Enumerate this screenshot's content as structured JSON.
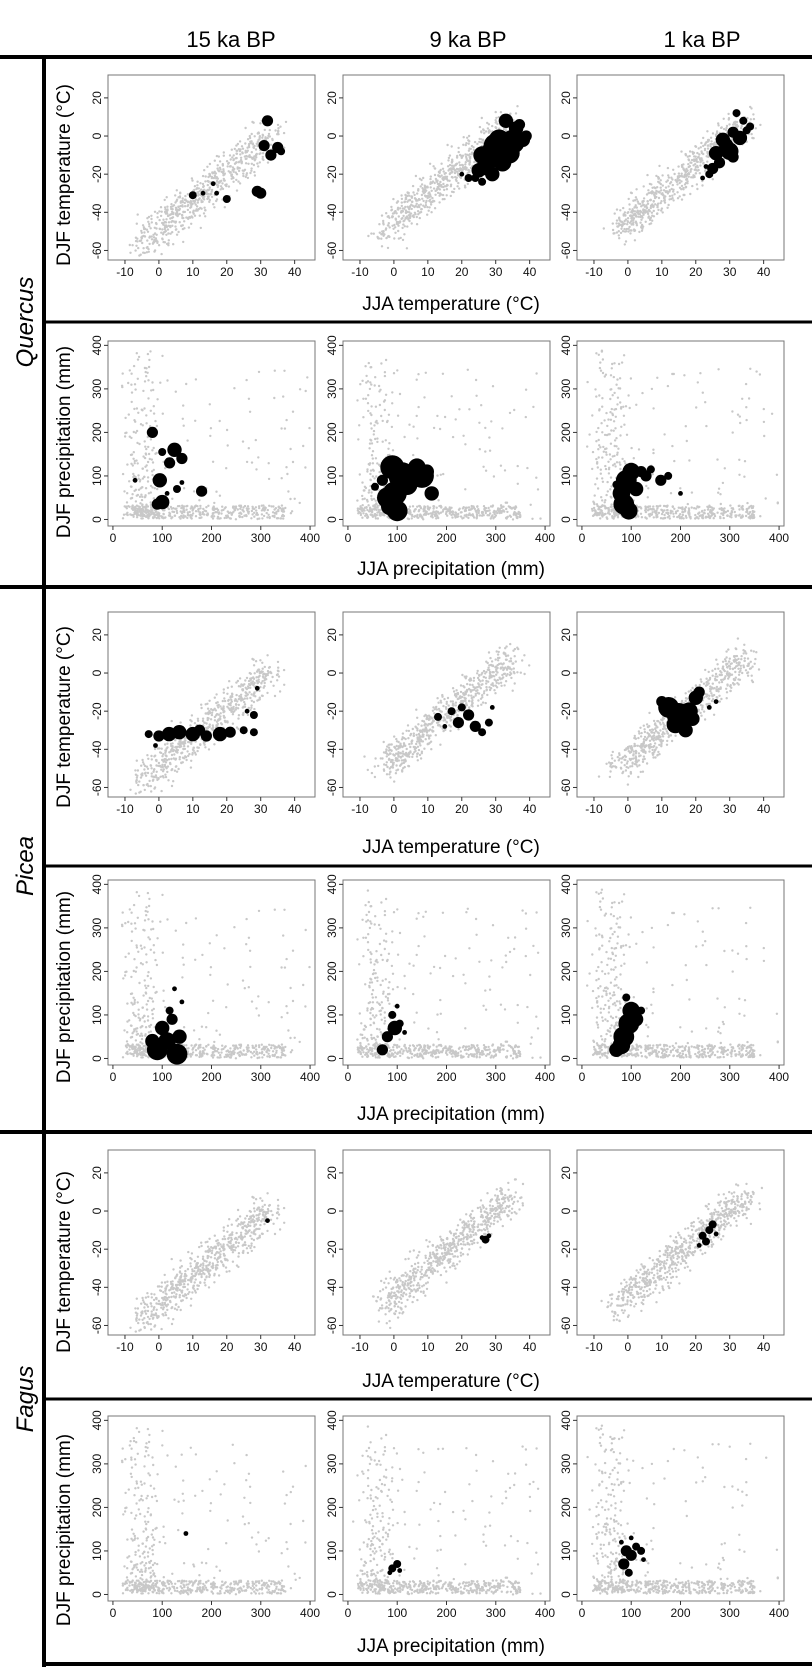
{
  "columns": [
    "15 ka BP",
    "9 ka BP",
    "1 ka BP"
  ],
  "species": [
    "Quercus",
    "Picea",
    "Fagus"
  ],
  "axis_labels": {
    "temp_x": "JJA temperature (°C)",
    "temp_y": "DJF temperature (°C)",
    "prec_x": "JJA precipitation (mm)",
    "prec_y": "DJF precipitation (mm)"
  },
  "colors": {
    "background_cloud": "#c8c8c8",
    "occurrence": "#000000",
    "frame": "#000000"
  },
  "chart_data": [
    {
      "type": "scatter",
      "species": "Quercus",
      "period": "15 ka BP",
      "variables": "temperature",
      "xlim": [
        -15,
        46
      ],
      "ylim": [
        -65,
        32
      ],
      "xticks": [
        -10,
        0,
        10,
        20,
        30,
        40
      ],
      "yticks": [
        20,
        0,
        -20,
        -40,
        -60
      ],
      "points": [
        [
          32,
          8,
          3
        ],
        [
          31,
          -5,
          3
        ],
        [
          35,
          -6,
          3
        ],
        [
          33,
          -10,
          3
        ],
        [
          36,
          -8,
          2
        ],
        [
          29,
          -29,
          3
        ],
        [
          30,
          -30,
          3
        ],
        [
          10,
          -31,
          2
        ],
        [
          13,
          -30,
          1
        ],
        [
          20,
          -33,
          2
        ],
        [
          16,
          -25,
          1
        ],
        [
          17,
          -30,
          1
        ]
      ]
    },
    {
      "type": "scatter",
      "species": "Quercus",
      "period": "9 ka BP",
      "variables": "temperature",
      "xlim": [
        -15,
        46
      ],
      "ylim": [
        -65,
        32
      ],
      "xticks": [
        -10,
        0,
        10,
        20,
        30,
        40
      ],
      "yticks": [
        20,
        0,
        -20,
        -40,
        -60
      ],
      "points": [
        [
          33,
          8,
          4
        ],
        [
          36,
          4,
          4
        ],
        [
          35,
          -3,
          7
        ],
        [
          31,
          -2,
          6
        ],
        [
          30,
          -8,
          8
        ],
        [
          28,
          -12,
          6
        ],
        [
          27,
          -16,
          5
        ],
        [
          32,
          -14,
          5
        ],
        [
          25,
          -18,
          4
        ],
        [
          29,
          -20,
          4
        ],
        [
          24,
          -22,
          2
        ],
        [
          22,
          -22,
          2
        ],
        [
          26,
          -24,
          2
        ],
        [
          38,
          -2,
          4
        ],
        [
          30,
          -5,
          7
        ],
        [
          34,
          -9,
          6
        ],
        [
          26,
          -10,
          5
        ],
        [
          39,
          0,
          3
        ],
        [
          20,
          -20,
          1
        ],
        [
          37,
          6,
          3
        ]
      ]
    },
    {
      "type": "scatter",
      "species": "Quercus",
      "period": "1 ka BP",
      "variables": "temperature",
      "xlim": [
        -15,
        46
      ],
      "ylim": [
        -65,
        32
      ],
      "xticks": [
        -10,
        0,
        10,
        20,
        30,
        40
      ],
      "yticks": [
        20,
        0,
        -20,
        -40,
        -60
      ],
      "points": [
        [
          32,
          12,
          2
        ],
        [
          34,
          8,
          2
        ],
        [
          31,
          2,
          3
        ],
        [
          33,
          -1,
          4
        ],
        [
          29,
          -5,
          4
        ],
        [
          30,
          -8,
          5
        ],
        [
          26,
          -9,
          4
        ],
        [
          27,
          -14,
          3
        ],
        [
          28,
          -2,
          4
        ],
        [
          25,
          -17,
          3
        ],
        [
          24,
          -20,
          2
        ],
        [
          36,
          5,
          2
        ],
        [
          22,
          -22,
          1
        ],
        [
          23,
          -16,
          1
        ],
        [
          35,
          3,
          2
        ],
        [
          31,
          -11,
          3
        ]
      ]
    },
    {
      "type": "scatter",
      "species": "Quercus",
      "period": "15 ka BP",
      "variables": "precipitation",
      "xlim": [
        -10,
        410
      ],
      "ylim": [
        -15,
        410
      ],
      "xticks": [
        0,
        100,
        200,
        300,
        400
      ],
      "yticks": [
        0,
        100,
        200,
        300,
        400
      ],
      "points": [
        [
          80,
          200,
          3
        ],
        [
          100,
          155,
          2
        ],
        [
          125,
          160,
          4
        ],
        [
          140,
          140,
          3
        ],
        [
          115,
          130,
          3
        ],
        [
          95,
          90,
          4
        ],
        [
          180,
          65,
          3
        ],
        [
          130,
          70,
          2
        ],
        [
          100,
          40,
          4
        ],
        [
          90,
          35,
          3
        ],
        [
          45,
          90,
          1
        ],
        [
          140,
          85,
          1
        ],
        [
          110,
          60,
          1
        ]
      ]
    },
    {
      "type": "scatter",
      "species": "Quercus",
      "period": "9 ka BP",
      "variables": "precipitation",
      "xlim": [
        -10,
        410
      ],
      "ylim": [
        -15,
        410
      ],
      "xticks": [
        0,
        100,
        200,
        300,
        400
      ],
      "yticks": [
        0,
        100,
        200,
        300,
        400
      ],
      "points": [
        [
          90,
          120,
          7
        ],
        [
          110,
          100,
          8
        ],
        [
          120,
          80,
          6
        ],
        [
          95,
          60,
          7
        ],
        [
          80,
          50,
          6
        ],
        [
          100,
          20,
          6
        ],
        [
          140,
          120,
          5
        ],
        [
          150,
          100,
          7
        ],
        [
          170,
          60,
          4
        ],
        [
          160,
          110,
          4
        ],
        [
          70,
          90,
          3
        ],
        [
          55,
          75,
          2
        ],
        [
          85,
          30,
          5
        ]
      ]
    },
    {
      "type": "scatter",
      "species": "Quercus",
      "period": "1 ka BP",
      "variables": "precipitation",
      "xlim": [
        -10,
        410
      ],
      "ylim": [
        -15,
        410
      ],
      "xticks": [
        0,
        100,
        200,
        300,
        400
      ],
      "yticks": [
        0,
        100,
        200,
        300,
        400
      ],
      "points": [
        [
          100,
          110,
          5
        ],
        [
          90,
          90,
          6
        ],
        [
          80,
          60,
          5
        ],
        [
          85,
          35,
          6
        ],
        [
          95,
          20,
          5
        ],
        [
          110,
          70,
          4
        ],
        [
          120,
          110,
          3
        ],
        [
          140,
          115,
          2
        ],
        [
          160,
          90,
          3
        ],
        [
          175,
          100,
          2
        ],
        [
          200,
          60,
          1
        ],
        [
          70,
          80,
          2
        ],
        [
          130,
          100,
          3
        ]
      ]
    },
    {
      "type": "scatter",
      "species": "Picea",
      "period": "15 ka BP",
      "variables": "temperature",
      "xlim": [
        -15,
        46
      ],
      "ylim": [
        -65,
        32
      ],
      "xticks": [
        -10,
        0,
        10,
        20,
        30,
        40
      ],
      "yticks": [
        20,
        0,
        -20,
        -40,
        -60
      ],
      "points": [
        [
          -3,
          -32,
          2
        ],
        [
          0,
          -33,
          3
        ],
        [
          3,
          -32,
          4
        ],
        [
          6,
          -31,
          4
        ],
        [
          10,
          -32,
          4
        ],
        [
          14,
          -33,
          3
        ],
        [
          18,
          -32,
          4
        ],
        [
          21,
          -31,
          3
        ],
        [
          25,
          -30,
          2
        ],
        [
          28,
          -31,
          2
        ],
        [
          28,
          -22,
          2
        ],
        [
          29,
          -8,
          1
        ],
        [
          26,
          -20,
          1
        ],
        [
          12,
          -30,
          3
        ],
        [
          -1,
          -38,
          1
        ]
      ]
    },
    {
      "type": "scatter",
      "species": "Picea",
      "period": "9 ka BP",
      "variables": "temperature",
      "xlim": [
        -15,
        46
      ],
      "ylim": [
        -65,
        32
      ],
      "xticks": [
        -10,
        0,
        10,
        20,
        30,
        40
      ],
      "yticks": [
        20,
        0,
        -20,
        -40,
        -60
      ],
      "points": [
        [
          13,
          -23,
          2
        ],
        [
          19,
          -26,
          3
        ],
        [
          22,
          -22,
          3
        ],
        [
          24,
          -28,
          3
        ],
        [
          20,
          -18,
          2
        ],
        [
          26,
          -31,
          2
        ],
        [
          17,
          -20,
          2
        ],
        [
          28,
          -26,
          2
        ],
        [
          29,
          -18,
          1
        ],
        [
          15,
          -28,
          1
        ]
      ]
    },
    {
      "type": "scatter",
      "species": "Picea",
      "period": "1 ka BP",
      "variables": "temperature",
      "xlim": [
        -15,
        46
      ],
      "ylim": [
        -65,
        32
      ],
      "xticks": [
        -10,
        0,
        10,
        20,
        30,
        40
      ],
      "yticks": [
        20,
        0,
        -20,
        -40,
        -60
      ],
      "points": [
        [
          12,
          -18,
          6
        ],
        [
          15,
          -22,
          7
        ],
        [
          18,
          -20,
          5
        ],
        [
          14,
          -27,
          5
        ],
        [
          17,
          -30,
          4
        ],
        [
          20,
          -13,
          4
        ],
        [
          21,
          -10,
          3
        ],
        [
          10,
          -15,
          3
        ],
        [
          19,
          -24,
          4
        ],
        [
          24,
          -18,
          1
        ],
        [
          26,
          -15,
          1
        ]
      ]
    },
    {
      "type": "scatter",
      "species": "Picea",
      "period": "15 ka BP",
      "variables": "precipitation",
      "xlim": [
        -10,
        410
      ],
      "ylim": [
        -15,
        410
      ],
      "xticks": [
        0,
        100,
        200,
        300,
        400
      ],
      "yticks": [
        0,
        100,
        200,
        300,
        400
      ],
      "points": [
        [
          90,
          20,
          6
        ],
        [
          110,
          40,
          5
        ],
        [
          130,
          10,
          6
        ],
        [
          100,
          70,
          4
        ],
        [
          120,
          90,
          3
        ],
        [
          135,
          50,
          4
        ],
        [
          80,
          40,
          4
        ],
        [
          140,
          130,
          1
        ],
        [
          125,
          160,
          1
        ],
        [
          115,
          110,
          2
        ]
      ]
    },
    {
      "type": "scatter",
      "species": "Picea",
      "period": "9 ka BP",
      "variables": "precipitation",
      "xlim": [
        -10,
        410
      ],
      "ylim": [
        -15,
        410
      ],
      "xticks": [
        0,
        100,
        200,
        300,
        400
      ],
      "yticks": [
        0,
        100,
        200,
        300,
        400
      ],
      "points": [
        [
          70,
          20,
          3
        ],
        [
          80,
          50,
          3
        ],
        [
          95,
          70,
          4
        ],
        [
          90,
          100,
          2
        ],
        [
          105,
          80,
          2
        ],
        [
          100,
          120,
          1
        ],
        [
          115,
          60,
          1
        ]
      ]
    },
    {
      "type": "scatter",
      "species": "Picea",
      "period": "1 ka BP",
      "variables": "precipitation",
      "xlim": [
        -10,
        410
      ],
      "ylim": [
        -15,
        410
      ],
      "xticks": [
        0,
        100,
        200,
        300,
        400
      ],
      "yticks": [
        0,
        100,
        200,
        300,
        400
      ],
      "points": [
        [
          70,
          20,
          4
        ],
        [
          85,
          50,
          6
        ],
        [
          95,
          80,
          6
        ],
        [
          100,
          110,
          5
        ],
        [
          110,
          90,
          4
        ],
        [
          90,
          140,
          2
        ],
        [
          120,
          110,
          2
        ],
        [
          80,
          30,
          5
        ]
      ]
    },
    {
      "type": "scatter",
      "species": "Fagus",
      "period": "15 ka BP",
      "variables": "temperature",
      "xlim": [
        -15,
        46
      ],
      "ylim": [
        -65,
        32
      ],
      "xticks": [
        -10,
        0,
        10,
        20,
        30,
        40
      ],
      "yticks": [
        20,
        0,
        -20,
        -40,
        -60
      ],
      "points": [
        [
          32,
          -5,
          1
        ]
      ]
    },
    {
      "type": "scatter",
      "species": "Fagus",
      "period": "9 ka BP",
      "variables": "temperature",
      "xlim": [
        -15,
        46
      ],
      "ylim": [
        -65,
        32
      ],
      "xticks": [
        -10,
        0,
        10,
        20,
        30,
        40
      ],
      "yticks": [
        20,
        0,
        -20,
        -40,
        -60
      ],
      "points": [
        [
          27,
          -15,
          2
        ],
        [
          28,
          -13,
          1
        ],
        [
          26,
          -14,
          1
        ]
      ]
    },
    {
      "type": "scatter",
      "species": "Fagus",
      "period": "1 ka BP",
      "variables": "temperature",
      "xlim": [
        -15,
        46
      ],
      "ylim": [
        -65,
        32
      ],
      "xticks": [
        -10,
        0,
        10,
        20,
        30,
        40
      ],
      "yticks": [
        20,
        0,
        -20,
        -40,
        -60
      ],
      "points": [
        [
          22,
          -13,
          2
        ],
        [
          24,
          -10,
          2
        ],
        [
          25,
          -7,
          2
        ],
        [
          23,
          -16,
          2
        ],
        [
          21,
          -18,
          1
        ],
        [
          26,
          -12,
          1
        ]
      ]
    },
    {
      "type": "scatter",
      "species": "Fagus",
      "period": "15 ka BP",
      "variables": "precipitation",
      "xlim": [
        -10,
        410
      ],
      "ylim": [
        -15,
        410
      ],
      "xticks": [
        0,
        100,
        200,
        300,
        400
      ],
      "yticks": [
        0,
        100,
        200,
        300,
        400
      ],
      "points": [
        [
          148,
          140,
          1
        ]
      ]
    },
    {
      "type": "scatter",
      "species": "Fagus",
      "period": "9 ka BP",
      "variables": "precipitation",
      "xlim": [
        -10,
        410
      ],
      "ylim": [
        -15,
        410
      ],
      "xticks": [
        0,
        100,
        200,
        300,
        400
      ],
      "yticks": [
        0,
        100,
        200,
        300,
        400
      ],
      "points": [
        [
          90,
          60,
          2
        ],
        [
          100,
          70,
          2
        ],
        [
          85,
          50,
          1
        ],
        [
          105,
          55,
          1
        ]
      ]
    },
    {
      "type": "scatter",
      "species": "Fagus",
      "period": "1 ka BP",
      "variables": "precipitation",
      "xlim": [
        -10,
        410
      ],
      "ylim": [
        -15,
        410
      ],
      "xticks": [
        0,
        100,
        200,
        300,
        400
      ],
      "yticks": [
        0,
        100,
        200,
        300,
        400
      ],
      "points": [
        [
          90,
          100,
          3
        ],
        [
          100,
          90,
          3
        ],
        [
          85,
          70,
          3
        ],
        [
          95,
          50,
          2
        ],
        [
          110,
          110,
          2
        ],
        [
          120,
          100,
          2
        ],
        [
          100,
          130,
          1
        ],
        [
          80,
          120,
          1
        ],
        [
          125,
          80,
          1
        ]
      ]
    }
  ]
}
